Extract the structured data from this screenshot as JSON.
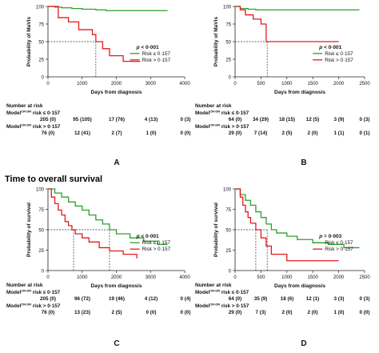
{
  "section_heading": "Time to overall survival",
  "chart_data": [
    {
      "type": "line",
      "panel_letter": "A",
      "ylabel": "Probability of MaVIs",
      "xlabel": "Days from diagnosis",
      "xlim": [
        0,
        4000
      ],
      "ylim": [
        0,
        100
      ],
      "xticks": [
        0,
        1000,
        2000,
        3000,
        4000
      ],
      "yticks": [
        0,
        25,
        50,
        75,
        100
      ],
      "p_label": "p",
      "p_value": "< 0·001",
      "series": [
        {
          "name": "Risk ≤ 0·157",
          "color": "#2ca02c",
          "x": [
            0,
            200,
            400,
            700,
            1000,
            1400,
            1700,
            2000,
            2500,
            3000,
            3500
          ],
          "y": [
            100,
            99,
            98,
            97,
            96,
            95,
            94,
            94,
            94,
            94,
            94
          ]
        },
        {
          "name": "Risk > 0·157",
          "color": "#e41a1c",
          "x": [
            0,
            300,
            600,
            900,
            1300,
            1400,
            1600,
            1800,
            2200,
            2700
          ],
          "y": [
            100,
            84,
            78,
            67,
            60,
            50,
            40,
            30,
            22,
            22
          ]
        }
      ],
      "median_drop_lines": [
        1400
      ],
      "risk_table": {
        "title": "Number at risk",
        "rows": [
          {
            "label": "Model",
            "superscript": "CR-DR",
            "suffix": " risk ≤ 0·157",
            "values": [
              "205 (0)",
              "95 (105)",
              "17 (76)",
              "4 (13)",
              "0 (3)"
            ]
          },
          {
            "label": "Model",
            "superscript": "CR-DR",
            "suffix": " risk > 0·157",
            "values": [
              "76 (0)",
              "12 (41)",
              "2 (7)",
              "1 (0)",
              "0 (0)"
            ]
          }
        ]
      }
    },
    {
      "type": "line",
      "panel_letter": "B",
      "ylabel": "Probability of MaVIs",
      "xlabel": "Days from diagnosis",
      "xlim": [
        0,
        2500
      ],
      "ylim": [
        0,
        100
      ],
      "xticks": [
        0,
        500,
        1000,
        1500,
        2000,
        2500
      ],
      "yticks": [
        0,
        25,
        50,
        75,
        100
      ],
      "p_label": "p",
      "p_value": "< 0·001",
      "series": [
        {
          "name": "Risk ≤ 0·157",
          "color": "#2ca02c",
          "x": [
            0,
            100,
            250,
            400,
            600,
            800,
            1200,
            1600,
            2000,
            2400
          ],
          "y": [
            100,
            97,
            96,
            95,
            95,
            95,
            95,
            95,
            95,
            95
          ]
        },
        {
          "name": "Risk > 0·157",
          "color": "#e41a1c",
          "x": [
            0,
            100,
            200,
            350,
            500,
            600,
            700,
            900,
            1500,
            2000
          ],
          "y": [
            100,
            95,
            88,
            82,
            75,
            50,
            50,
            50,
            50,
            50
          ]
        }
      ],
      "median_drop_lines": [
        620
      ],
      "risk_table": {
        "title": "Number at risk",
        "rows": [
          {
            "label": "Model",
            "superscript": "CR-DR",
            "suffix": " risk ≤ 0·157",
            "values": [
              "64 (0)",
              "34 (29)",
              "18 (15)",
              "12 (5)",
              "3 (9)",
              "0 (3)"
            ]
          },
          {
            "label": "Model",
            "superscript": "CR-DR",
            "suffix": " risk > 0·157",
            "values": [
              "29 (0)",
              "7 (14)",
              "2 (5)",
              "2 (0)",
              "1 (1)",
              "0 (1)"
            ]
          }
        ]
      }
    },
    {
      "type": "line",
      "panel_letter": "C",
      "ylabel": "Probability of survival",
      "xlabel": "Days from diagnosis",
      "xlim": [
        0,
        4000
      ],
      "ylim": [
        0,
        100
      ],
      "xticks": [
        0,
        1000,
        2000,
        3000,
        4000
      ],
      "yticks": [
        0,
        25,
        50,
        75,
        100
      ],
      "p_label": "p",
      "p_value": "< 0·001",
      "series": [
        {
          "name": "Risk ≤ 0·157",
          "color": "#2ca02c",
          "x": [
            0,
            200,
            400,
            600,
            800,
            1000,
            1200,
            1400,
            1600,
            1800,
            2000,
            2400,
            2800,
            3200,
            3500
          ],
          "y": [
            100,
            95,
            90,
            84,
            79,
            74,
            68,
            62,
            57,
            50,
            45,
            40,
            36,
            32,
            32
          ]
        },
        {
          "name": "Risk > 0·157",
          "color": "#e41a1c",
          "x": [
            0,
            100,
            200,
            300,
            400,
            500,
            600,
            700,
            800,
            1000,
            1200,
            1500,
            1800,
            2200,
            2600
          ],
          "y": [
            100,
            90,
            82,
            74,
            68,
            60,
            55,
            50,
            45,
            40,
            35,
            28,
            24,
            20,
            15
          ]
        }
      ],
      "median_drop_lines": [
        750,
        1800
      ],
      "risk_table": {
        "title": "Number at risk",
        "rows": [
          {
            "label": "Model",
            "superscript": "CR-DR",
            "suffix": " risk ≤ 0·157",
            "values": [
              "205 (0)",
              "96 (72)",
              "19 (46)",
              "4 (12)",
              "0 (4)"
            ]
          },
          {
            "label": "Model",
            "superscript": "CR-DR",
            "suffix": " risk > 0·157",
            "values": [
              "76 (0)",
              "13 (23)",
              "2 (5)",
              "0 (0)",
              "0 (0)"
            ]
          }
        ]
      }
    },
    {
      "type": "line",
      "panel_letter": "D",
      "ylabel": "Probability of survival",
      "xlabel": "Days from diagnosis",
      "xlim": [
        0,
        2500
      ],
      "ylim": [
        0,
        100
      ],
      "xticks": [
        0,
        500,
        1000,
        1500,
        2000,
        2500
      ],
      "yticks": [
        0,
        25,
        50,
        75,
        100
      ],
      "p_label": "p",
      "p_value": "= 0·003",
      "series": [
        {
          "name": "Risk ≤ 0·157",
          "color": "#2ca02c",
          "x": [
            0,
            100,
            200,
            300,
            400,
            500,
            600,
            700,
            800,
            1000,
            1200,
            1500,
            1800,
            2100,
            2400
          ],
          "y": [
            100,
            93,
            86,
            80,
            72,
            65,
            57,
            50,
            46,
            42,
            38,
            34,
            32,
            28,
            28
          ]
        },
        {
          "name": "Risk > 0·157",
          "color": "#e41a1c",
          "x": [
            0,
            100,
            150,
            200,
            250,
            300,
            400,
            500,
            600,
            700,
            1000,
            1400,
            2000
          ],
          "y": [
            100,
            90,
            80,
            72,
            65,
            58,
            50,
            40,
            30,
            20,
            12,
            12,
            12
          ]
        }
      ],
      "median_drop_lines": [
        400,
        620
      ],
      "risk_table": {
        "title": "Number at risk",
        "rows": [
          {
            "label": "Model",
            "superscript": "CR-DR",
            "suffix": " risk ≤ 0·157",
            "values": [
              "64 (0)",
              "35 (9)",
              "18 (6)",
              "12 (1)",
              "3 (3)",
              "0 (3)"
            ]
          },
          {
            "label": "Model",
            "superscript": "CR-DR",
            "suffix": " risk > 0·157",
            "values": [
              "29 (0)",
              "7 (3)",
              "2 (0)",
              "2 (0)",
              "1 (0)",
              "0 (0)"
            ]
          }
        ]
      }
    }
  ]
}
